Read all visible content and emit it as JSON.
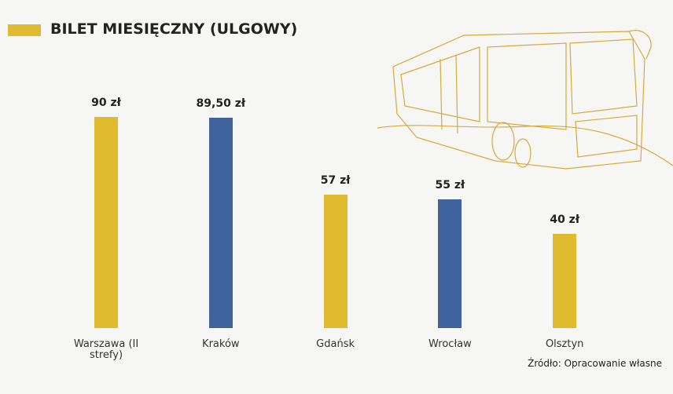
{
  "chart_data": {
    "type": "bar",
    "title": "BILET MIESIĘCZNY (ULGOWY)",
    "categories": [
      "Warszawa (II strefy)",
      "Kraków",
      "Gdańsk",
      "Wrocław",
      "Olsztyn"
    ],
    "values": [
      90,
      89.5,
      57,
      55,
      40
    ],
    "value_labels": [
      "90 zł",
      "89,50 zł",
      "57 zł",
      "55 zł",
      "40 zł"
    ],
    "colors": [
      "#e0bb30",
      "#40639e",
      "#e0bb30",
      "#40639e",
      "#e0bb30"
    ],
    "title_color": "#e0bb30",
    "source": "Źródło: Opracowanie własne"
  }
}
